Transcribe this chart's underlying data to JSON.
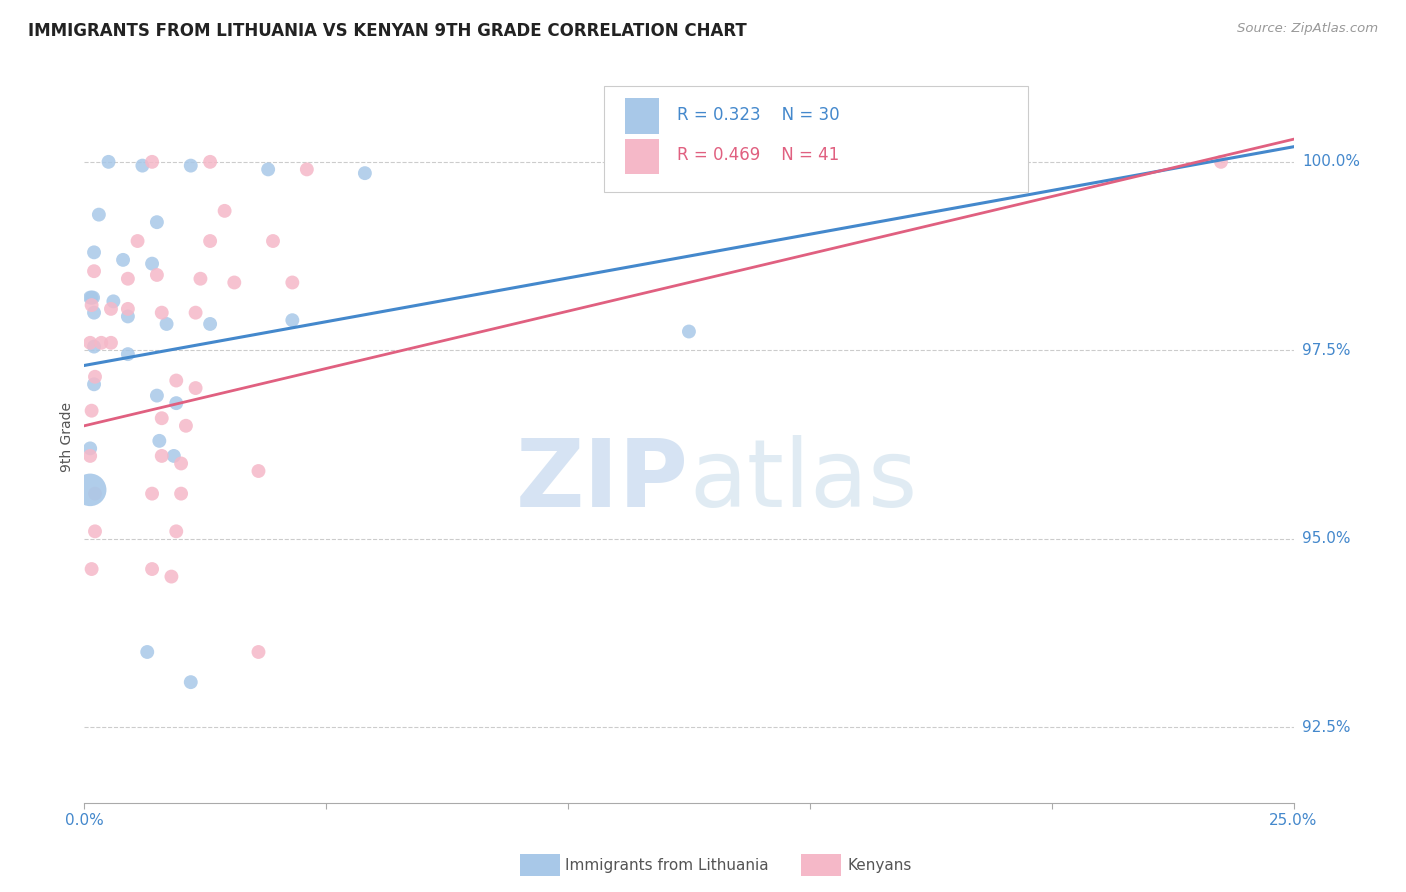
{
  "title": "IMMIGRANTS FROM LITHUANIA VS KENYAN 9TH GRADE CORRELATION CHART",
  "source": "Source: ZipAtlas.com",
  "ylabel": "9th Grade",
  "yticks": [
    92.5,
    95.0,
    97.5,
    100.0
  ],
  "xlim": [
    0.0,
    25.0
  ],
  "ylim": [
    91.5,
    101.2
  ],
  "blue_color": "#a8c8e8",
  "pink_color": "#f5b8c8",
  "blue_line_color": "#4488cc",
  "pink_line_color": "#e06080",
  "blue_R": 0.323,
  "blue_N": 30,
  "pink_R": 0.469,
  "pink_N": 41,
  "legend_label_blue": "Immigrants from Lithuania",
  "legend_label_pink": "Kenyans",
  "background_color": "#ffffff",
  "grid_color": "#cccccc",
  "blue_line": [
    0.0,
    97.3,
    25.0,
    100.2
  ],
  "pink_line": [
    0.0,
    96.5,
    25.0,
    100.3
  ],
  "blue_points": [
    [
      0.5,
      100.0
    ],
    [
      1.2,
      99.95
    ],
    [
      2.2,
      99.95
    ],
    [
      3.8,
      99.9
    ],
    [
      5.8,
      99.85
    ],
    [
      0.3,
      99.3
    ],
    [
      1.5,
      99.2
    ],
    [
      0.2,
      98.8
    ],
    [
      0.8,
      98.7
    ],
    [
      1.4,
      98.65
    ],
    [
      0.12,
      98.2
    ],
    [
      0.15,
      98.2
    ],
    [
      0.18,
      98.2
    ],
    [
      0.6,
      98.15
    ],
    [
      0.2,
      98.0
    ],
    [
      0.9,
      97.95
    ],
    [
      1.7,
      97.85
    ],
    [
      2.6,
      97.85
    ],
    [
      4.3,
      97.9
    ],
    [
      0.2,
      97.55
    ],
    [
      0.9,
      97.45
    ],
    [
      0.2,
      97.05
    ],
    [
      1.5,
      96.9
    ],
    [
      1.9,
      96.8
    ],
    [
      0.12,
      96.2
    ],
    [
      1.55,
      96.3
    ],
    [
      1.85,
      96.1
    ],
    [
      12.5,
      97.75
    ],
    [
      1.3,
      93.5
    ],
    [
      2.2,
      93.1
    ]
  ],
  "blue_large_point": [
    0.12,
    95.65
  ],
  "pink_points": [
    [
      1.4,
      100.0
    ],
    [
      2.6,
      100.0
    ],
    [
      4.6,
      99.9
    ],
    [
      23.5,
      100.0
    ],
    [
      2.9,
      99.35
    ],
    [
      1.1,
      98.95
    ],
    [
      2.6,
      98.95
    ],
    [
      3.9,
      98.95
    ],
    [
      0.2,
      98.55
    ],
    [
      0.9,
      98.45
    ],
    [
      1.5,
      98.5
    ],
    [
      2.4,
      98.45
    ],
    [
      3.1,
      98.4
    ],
    [
      4.3,
      98.4
    ],
    [
      0.15,
      98.1
    ],
    [
      0.55,
      98.05
    ],
    [
      0.9,
      98.05
    ],
    [
      1.6,
      98.0
    ],
    [
      2.3,
      98.0
    ],
    [
      0.12,
      97.6
    ],
    [
      0.35,
      97.6
    ],
    [
      0.55,
      97.6
    ],
    [
      0.22,
      97.15
    ],
    [
      1.9,
      97.1
    ],
    [
      2.3,
      97.0
    ],
    [
      0.15,
      96.7
    ],
    [
      1.6,
      96.6
    ],
    [
      2.1,
      96.5
    ],
    [
      0.12,
      96.1
    ],
    [
      1.6,
      96.1
    ],
    [
      2.0,
      96.0
    ],
    [
      3.6,
      95.9
    ],
    [
      0.22,
      95.6
    ],
    [
      1.4,
      95.6
    ],
    [
      2.0,
      95.6
    ],
    [
      0.22,
      95.1
    ],
    [
      1.9,
      95.1
    ],
    [
      0.15,
      94.6
    ],
    [
      1.4,
      94.6
    ],
    [
      1.8,
      94.5
    ],
    [
      3.6,
      93.5
    ]
  ]
}
